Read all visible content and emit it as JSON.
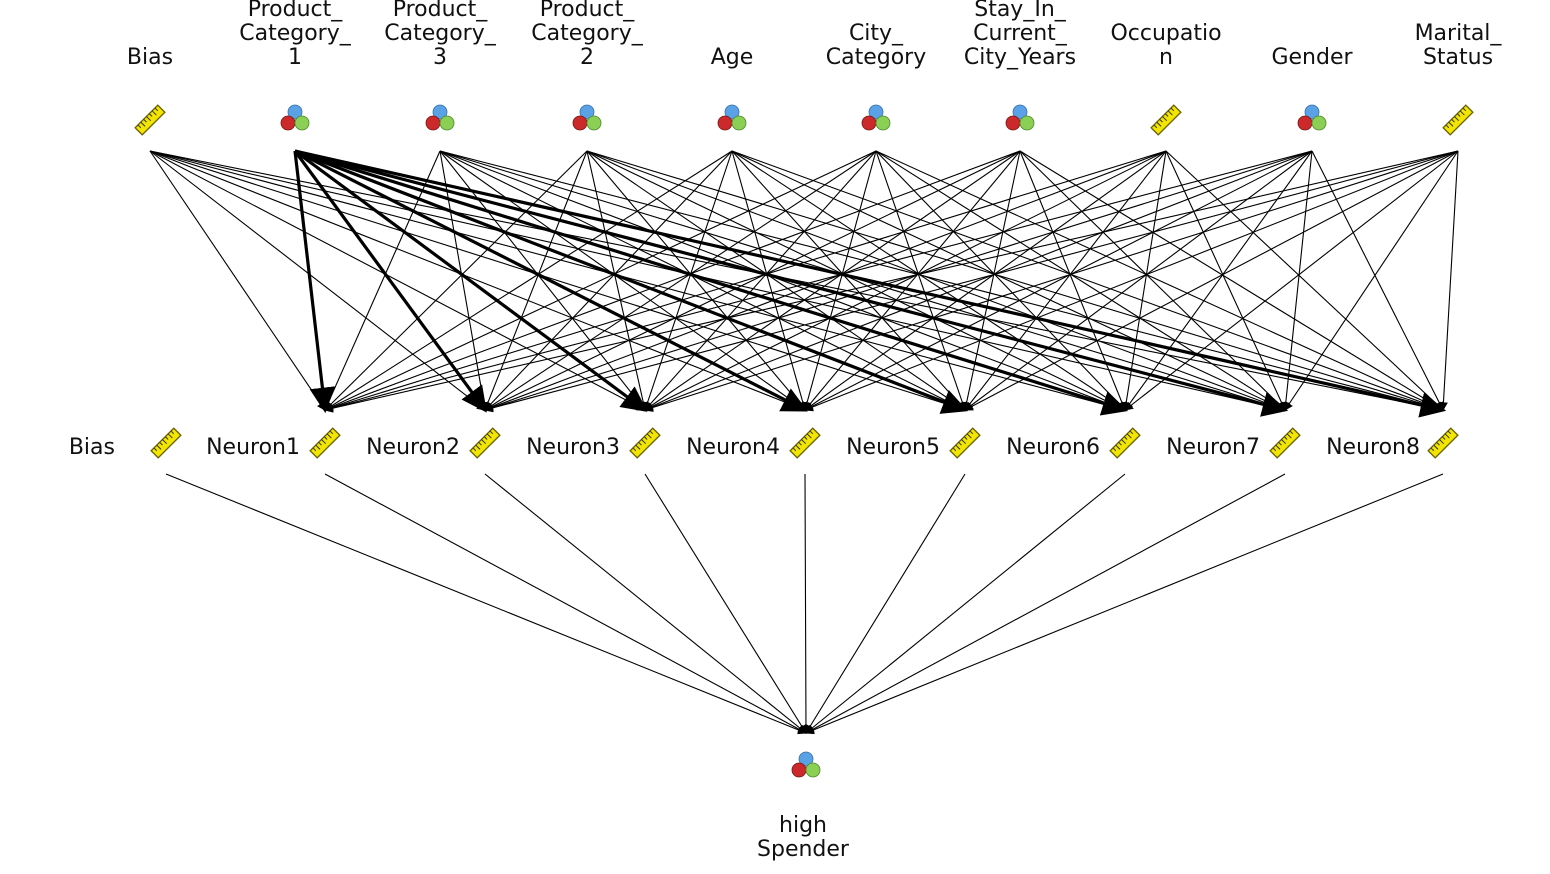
{
  "diagram": {
    "type": "neural-network",
    "input_layer": [
      {
        "id": "in-bias",
        "label_lines": [
          "Bias"
        ],
        "icon": "ruler-icon"
      },
      {
        "id": "in-product-category-1",
        "label_lines": [
          "Product_",
          "Category_",
          "1"
        ],
        "icon": "nominal-attribute-icon"
      },
      {
        "id": "in-product-category-3",
        "label_lines": [
          "Product_",
          "Category_",
          "3"
        ],
        "icon": "nominal-attribute-icon"
      },
      {
        "id": "in-product-category-2",
        "label_lines": [
          "Product_",
          "Category_",
          "2"
        ],
        "icon": "nominal-attribute-icon"
      },
      {
        "id": "in-age",
        "label_lines": [
          "Age"
        ],
        "icon": "nominal-attribute-icon"
      },
      {
        "id": "in-city-category",
        "label_lines": [
          "City_",
          "Category"
        ],
        "icon": "nominal-attribute-icon"
      },
      {
        "id": "in-stay-in-current-city-years",
        "label_lines": [
          "Stay_In_",
          "Current_",
          "City_Years"
        ],
        "icon": "nominal-attribute-icon"
      },
      {
        "id": "in-occupation",
        "label_lines": [
          "Occupatio",
          "n"
        ],
        "icon": "ruler-icon"
      },
      {
        "id": "in-gender",
        "label_lines": [
          "Gender"
        ],
        "icon": "nominal-attribute-icon"
      },
      {
        "id": "in-marital-status",
        "label_lines": [
          "Marital_",
          "Status"
        ],
        "icon": "ruler-icon"
      }
    ],
    "hidden_layer": [
      {
        "id": "hid-bias",
        "label": "Bias",
        "icon": "ruler-icon"
      },
      {
        "id": "hid-neuron1",
        "label": "Neuron1",
        "icon": "ruler-icon"
      },
      {
        "id": "hid-neuron2",
        "label": "Neuron2",
        "icon": "ruler-icon"
      },
      {
        "id": "hid-neuron3",
        "label": "Neuron3",
        "icon": "ruler-icon"
      },
      {
        "id": "hid-neuron4",
        "label": "Neuron4",
        "icon": "ruler-icon"
      },
      {
        "id": "hid-neuron5",
        "label": "Neuron5",
        "icon": "ruler-icon"
      },
      {
        "id": "hid-neuron6",
        "label": "Neuron6",
        "icon": "ruler-icon"
      },
      {
        "id": "hid-neuron7",
        "label": "Neuron7",
        "icon": "ruler-icon"
      },
      {
        "id": "hid-neuron8",
        "label": "Neuron8",
        "icon": "ruler-icon"
      }
    ],
    "output_layer": [
      {
        "id": "out-high-spender",
        "label_lines": [
          "high",
          "Spender"
        ],
        "icon": "nominal-attribute-icon"
      }
    ],
    "connections": {
      "input_to_hidden": "all inputs to Neuron1-Neuron8",
      "hidden_to_output": "all hidden nodes to high Spender",
      "emphasized_source": "in-product-category-1"
    },
    "colors": {
      "edge": "#000000",
      "text": "#111111",
      "ruler_fill": "#f2e600",
      "ruler_stroke": "#6b5f00",
      "circle_blue": "#5aa2e6",
      "circle_red": "#cc2a2a",
      "circle_green": "#8ccf55"
    }
  }
}
